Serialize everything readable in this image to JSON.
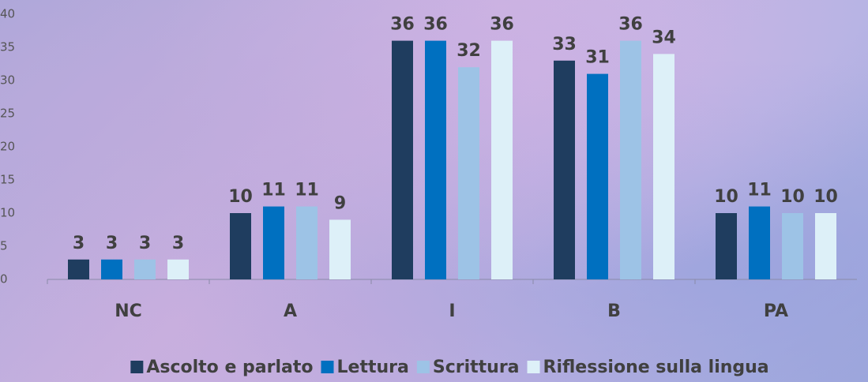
{
  "chart_data": {
    "type": "bar",
    "categories": [
      "NC",
      "A",
      "I",
      "B",
      "PA"
    ],
    "series": [
      {
        "name": "Ascolto e parlato",
        "color": "#1f3d5f",
        "values": [
          3,
          10,
          36,
          33,
          10
        ]
      },
      {
        "name": "Lettura",
        "color": "#0070c0",
        "values": [
          3,
          11,
          36,
          31,
          11
        ]
      },
      {
        "name": "Scrittura",
        "color": "#9dc3e6",
        "values": [
          3,
          11,
          32,
          36,
          10
        ]
      },
      {
        "name": "Riflessione sulla lingua",
        "color": "#ddf0f8",
        "values": [
          3,
          9,
          36,
          34,
          10
        ]
      }
    ],
    "ylim": [
      0,
      40
    ],
    "yticks": [
      0,
      5,
      10,
      15,
      20,
      25,
      30,
      35,
      40
    ],
    "grid": false
  }
}
